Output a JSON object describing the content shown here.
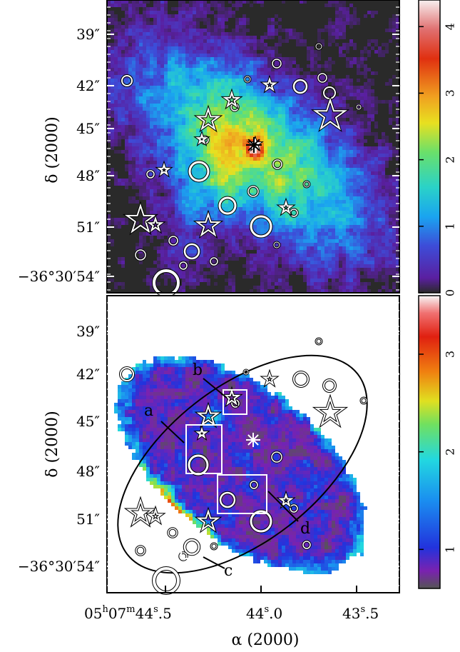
{
  "chart_data": [
    {
      "type": "heatmap",
      "panel": "top",
      "ylabel": "δ (2000)",
      "y_ticks": [
        "39″",
        "42″",
        "45″",
        "48″",
        "51″",
        "−36°30′54″"
      ],
      "colorbar": {
        "ticks": [
          "0",
          "1",
          "2",
          "3",
          "4"
        ],
        "range": [
          0,
          4.4
        ]
      },
      "features": {
        "open_circles": 24,
        "star_markers": 12,
        "asterisk_marker": "center (peak emission)"
      }
    },
    {
      "type": "heatmap",
      "panel": "bottom",
      "xlabel": "α (2000)",
      "ylabel": "δ (2000)",
      "x_ticks": [
        "05h07m44s.5",
        "44s.0",
        "43s.5"
      ],
      "x_tick_parts": [
        {
          "h": "05",
          "m": "07",
          "s": "44",
          "f": "5"
        },
        {
          "s": "44",
          "f": "0"
        },
        {
          "s": "43",
          "f": "5"
        }
      ],
      "y_ticks": [
        "39″",
        "42″",
        "45″",
        "48″",
        "51″",
        "−36°30′54″"
      ],
      "colorbar": {
        "ticks": [
          "1",
          "2",
          "3"
        ],
        "range": [
          0.6,
          3.6
        ]
      },
      "regions": [
        {
          "label": "a"
        },
        {
          "label": "b"
        },
        {
          "label": "c"
        },
        {
          "label": "d"
        }
      ]
    }
  ],
  "colors": {
    "colormap_top": [
      "#2a2a2a",
      "#5a1fa0",
      "#3d4cd8",
      "#1aa4f0",
      "#2ad2c8",
      "#6ae06a",
      "#e8e020",
      "#f0a020",
      "#e03010",
      "#f0f0f0"
    ],
    "colormap_bottom": [
      "#555555",
      "#7a22b0",
      "#2233dd",
      "#1a8ef0",
      "#22d8e0",
      "#70e060",
      "#e0e020",
      "#f08010",
      "#e02010",
      "#f8f8f8"
    ],
    "marker": "#ffffff",
    "outline": "#000000"
  }
}
